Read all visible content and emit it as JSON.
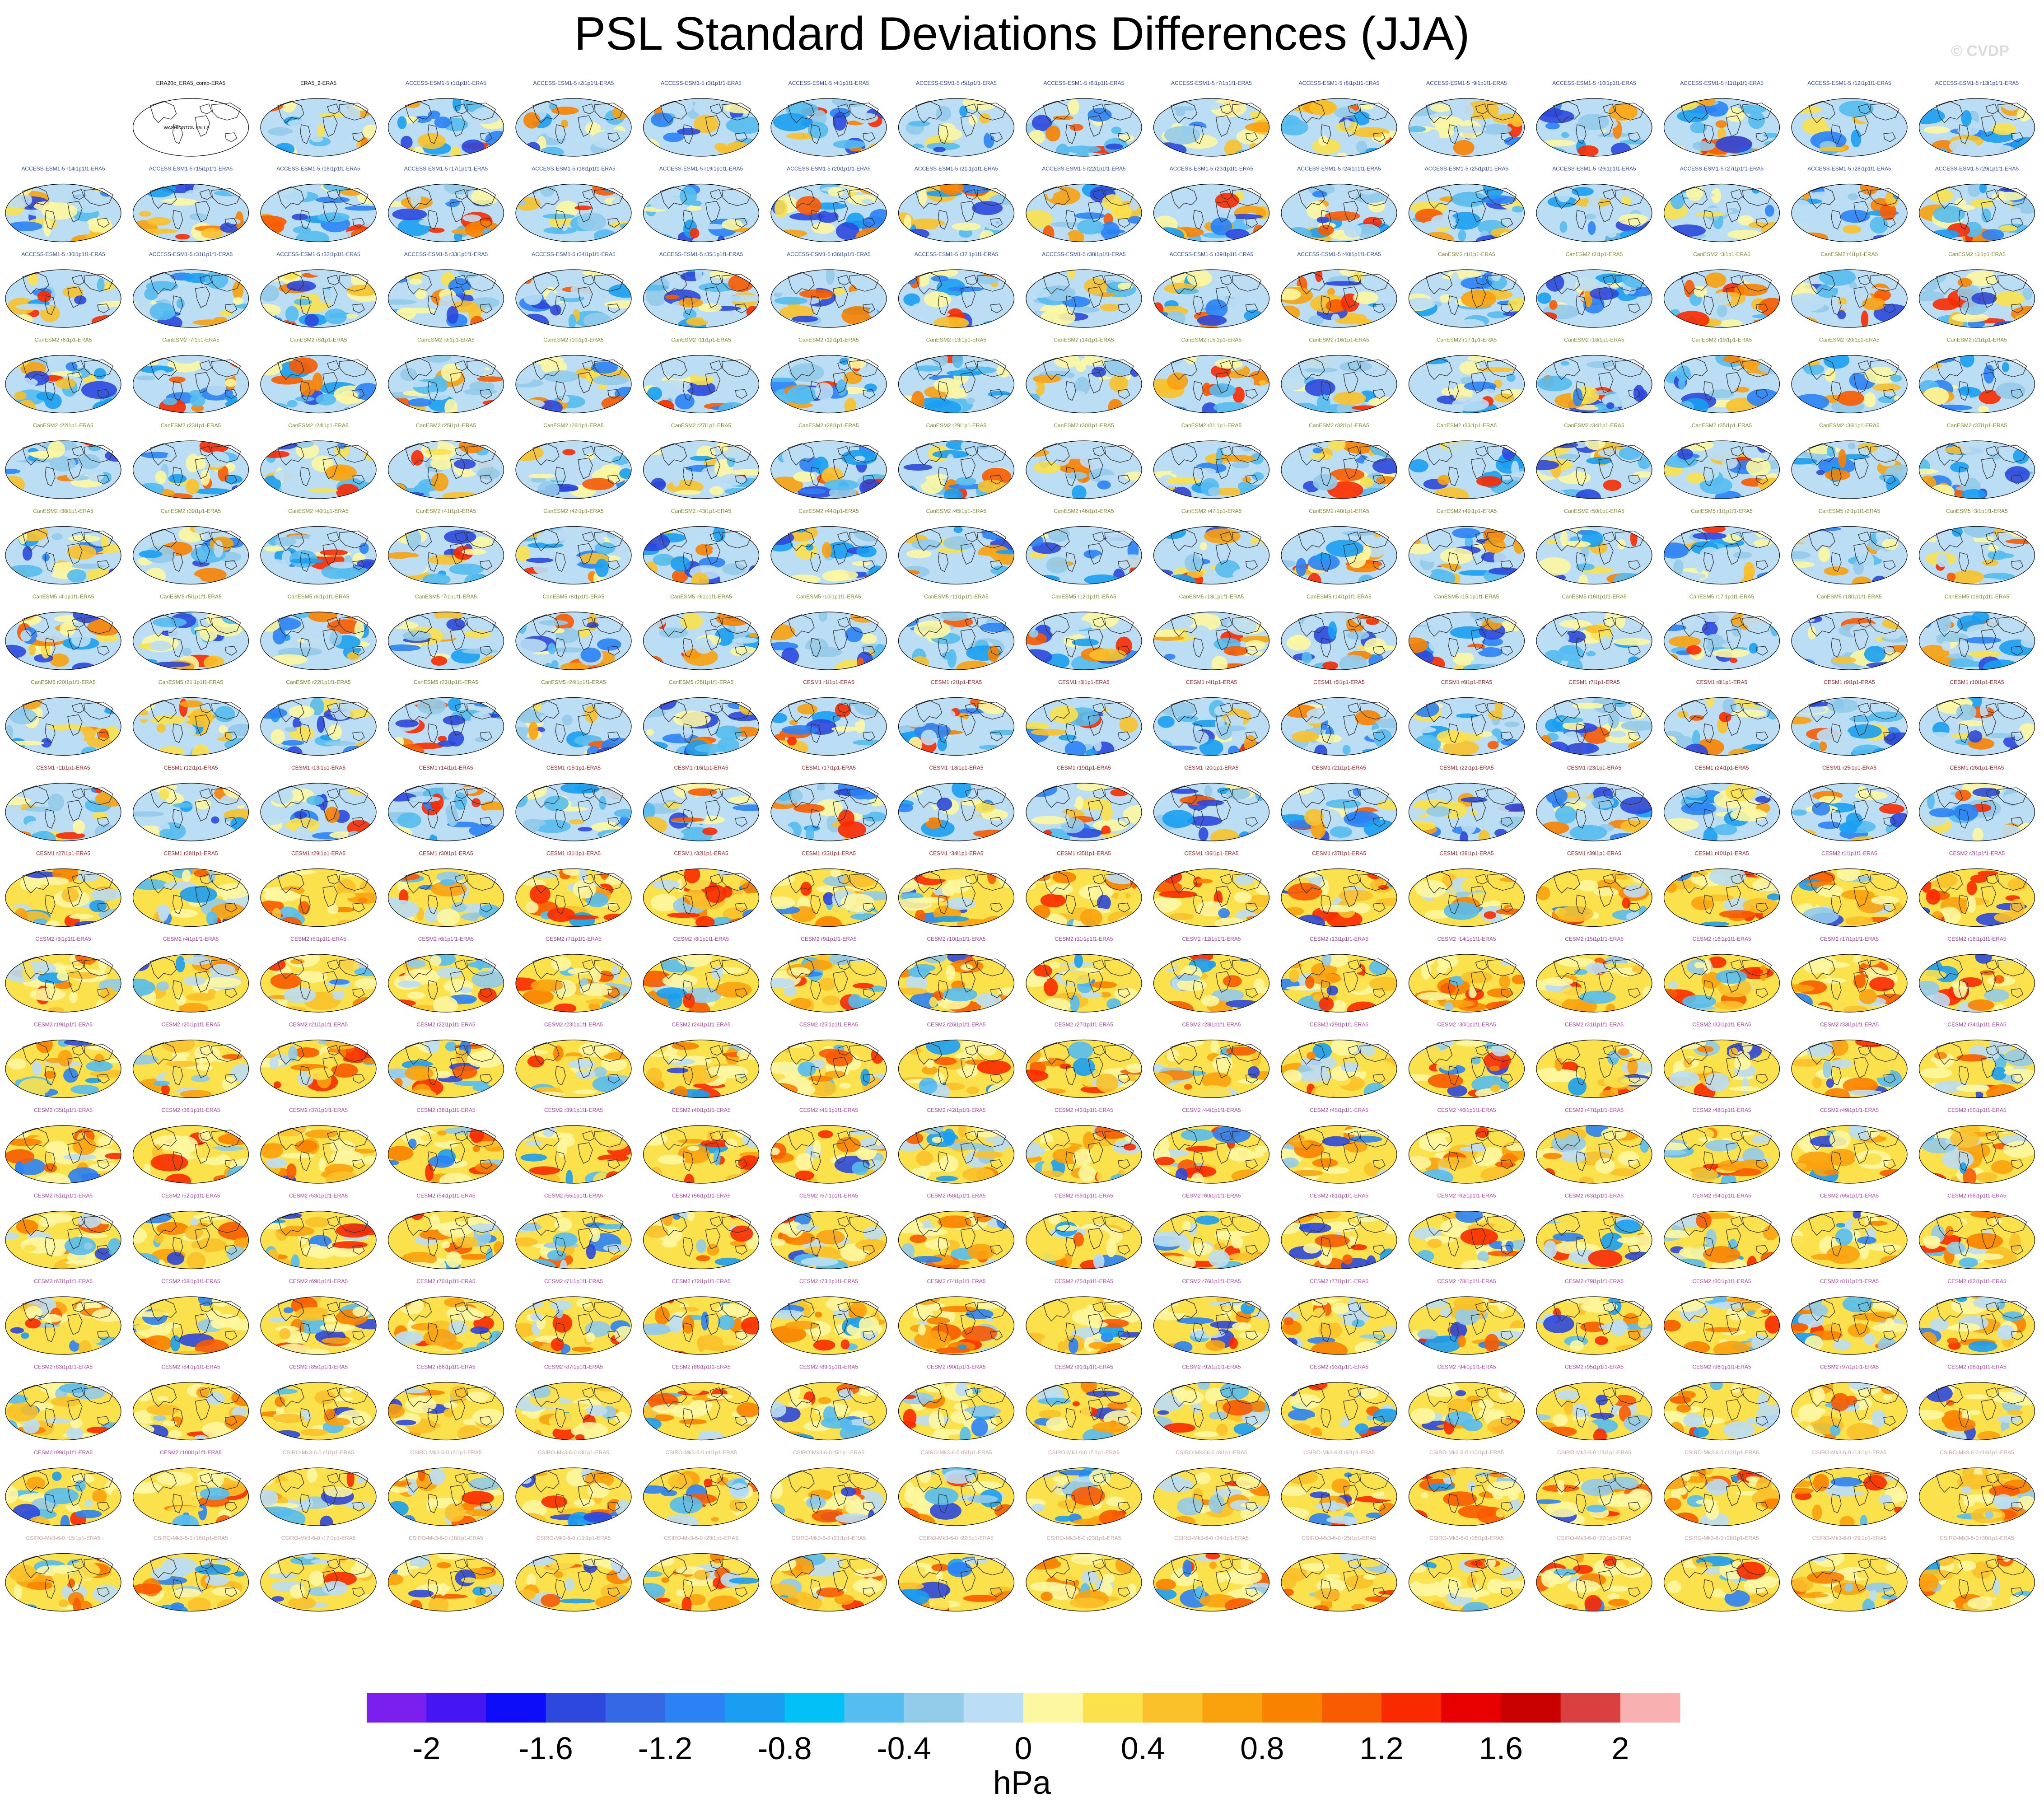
{
  "title": "PSL Standard Deviations Differences (JJA)",
  "watermark": "© CVDP",
  "grid": {
    "rows": 18,
    "cols": 16
  },
  "reference_panel": {
    "title": "ERA20c_ERA5_comb-ERA5",
    "label": "WASHINGTON FALLS"
  },
  "panel_labels": [
    "ERA5_2-ERA5",
    "ACCESS-ESM1-5 r1i1p1f1-ERA5",
    "ACCESS-ESM1-5 r2i1p1f1-ERA5",
    "ACCESS-ESM1-5 r3i1p1f1-ERA5",
    "ACCESS-ESM1-5 r4i1p1f1-ERA5",
    "ACCESS-ESM1-5 r5i1p1f1-ERA5",
    "ACCESS-ESM1-5 r6i1p1f1-ERA5",
    "ACCESS-ESM1-5 r7i1p1f1-ERA5",
    "ACCESS-ESM1-5 r8i1p1f1-ERA5",
    "ACCESS-ESM1-5 r9i1p1f1-ERA5",
    "ACCESS-ESM1-5 r10i1p1f1-ERA5",
    "ACCESS-ESM1-5 r11i1p1f1-ERA5",
    "ACCESS-ESM1-5 r12i1p1f1-ERA5",
    "ACCESS-ESM1-5 r13i1p1f1-ERA5",
    "ACCESS-ESM1-5 r14i1p1f1-ERA5",
    "ACCESS-ESM1-5 r15i1p1f1-ERA5",
    "ACCESS-ESM1-5 r16i1p1f1-ERA5",
    "ACCESS-ESM1-5 r17i1p1f1-ERA5",
    "ACCESS-ESM1-5 r18i1p1f1-ERA5",
    "ACCESS-ESM1-5 r19i1p1f1-ERA5",
    "ACCESS-ESM1-5 r20i1p1f1-ERA5",
    "ACCESS-ESM1-5 r21i1p1f1-ERA5",
    "ACCESS-ESM1-5 r22i1p1f1-ERA5",
    "ACCESS-ESM1-5 r23i1p1f1-ERA5",
    "ACCESS-ESM1-5 r24i1p1f1-ERA5",
    "ACCESS-ESM1-5 r25i1p1f1-ERA5",
    "ACCESS-ESM1-5 r26i1p1f1-ERA5",
    "ACCESS-ESM1-5 r27i1p1f1-ERA5",
    "ACCESS-ESM1-5 r28i1p1f1-ERA5",
    "ACCESS-ESM1-5 r29i1p1f1-ERA5",
    "ACCESS-ESM1-5 r30i1p1f1-ERA5",
    "ACCESS-ESM1-5 r31i1p1f1-ERA5",
    "ACCESS-ESM1-5 r32i1p1f1-ERA5",
    "ACCESS-ESM1-5 r33i1p1f1-ERA5",
    "ACCESS-ESM1-5 r34i1p1f1-ERA5",
    "ACCESS-ESM1-5 r35i1p1f1-ERA5",
    "ACCESS-ESM1-5 r36i1p1f1-ERA5",
    "ACCESS-ESM1-5 r37i1p1f1-ERA5",
    "ACCESS-ESM1-5 r38i1p1f1-ERA5",
    "ACCESS-ESM1-5 r39i1p1f1-ERA5",
    "ACCESS-ESM1-5 r40i1p1f1-ERA5",
    "CanESM2 r1i1p1-ERA5",
    "CanESM2 r2i1p1-ERA5",
    "CanESM2 r3i1p1-ERA5",
    "CanESM2 r4i1p1-ERA5",
    "CanESM2 r5i1p1-ERA5",
    "CanESM2 r6i1p1-ERA5",
    "CanESM2 r7i1p1-ERA5",
    "CanESM2 r8i1p1-ERA5",
    "CanESM2 r9i1p1-ERA5",
    "CanESM2 r10i1p1-ERA5",
    "CanESM2 r11i1p1-ERA5",
    "CanESM2 r12i1p1-ERA5",
    "CanESM2 r13i1p1-ERA5",
    "CanESM2 r14i1p1-ERA5",
    "CanESM2 r15i1p1-ERA5",
    "CanESM2 r16i1p1-ERA5",
    "CanESM2 r17i1p1-ERA5",
    "CanESM2 r18i1p1-ERA5",
    "CanESM2 r19i1p1-ERA5",
    "CanESM2 r20i1p1-ERA5",
    "CanESM2 r21i1p1-ERA5",
    "CanESM2 r22i1p1-ERA5",
    "CanESM2 r23i1p1-ERA5",
    "CanESM2 r24i1p1-ERA5",
    "CanESM2 r25i1p1-ERA5",
    "CanESM2 r26i1p1-ERA5",
    "CanESM2 r27i1p1-ERA5",
    "CanESM2 r28i1p1-ERA5",
    "CanESM2 r29i1p1-ERA5",
    "CanESM2 r30i1p1-ERA5",
    "CanESM2 r31i1p1-ERA5",
    "CanESM2 r32i1p1-ERA5",
    "CanESM2 r33i1p1-ERA5",
    "CanESM2 r34i1p1-ERA5",
    "CanESM2 r35i1p1-ERA5",
    "CanESM2 r36i1p1-ERA5",
    "CanESM2 r37i1p1-ERA5",
    "CanESM2 r38i1p1-ERA5",
    "CanESM2 r39i1p1-ERA5",
    "CanESM2 r40i1p1-ERA5",
    "CanESM2 r41i1p1-ERA5",
    "CanESM2 r42i1p1-ERA5",
    "CanESM2 r43i1p1-ERA5",
    "CanESM2 r44i1p1-ERA5",
    "CanESM2 r45i1p1-ERA5",
    "CanESM2 r46i1p1-ERA5",
    "CanESM2 r47i1p1-ERA5",
    "CanESM2 r48i1p1-ERA5",
    "CanESM2 r49i1p1-ERA5",
    "CanESM2 r50i1p1-ERA5",
    "CanESM5 r1i1p1f1-ERA5",
    "CanESM5 r2i1p1f1-ERA5",
    "CanESM5 r3i1p1f1-ERA5",
    "CanESM5 r4i1p1f1-ERA5",
    "CanESM5 r5i1p1f1-ERA5",
    "CanESM5 r6i1p1f1-ERA5",
    "CanESM5 r7i1p1f1-ERA5",
    "CanESM5 r8i1p1f1-ERA5",
    "CanESM5 r9i1p1f1-ERA5",
    "CanESM5 r10i1p1f1-ERA5",
    "CanESM5 r11i1p1f1-ERA5",
    "CanESM5 r12i1p1f1-ERA5",
    "CanESM5 r13i1p1f1-ERA5",
    "CanESM5 r14i1p1f1-ERA5",
    "CanESM5 r15i1p1f1-ERA5",
    "CanESM5 r16i1p1f1-ERA5",
    "CanESM5 r17i1p1f1-ERA5",
    "CanESM5 r18i1p1f1-ERA5",
    "CanESM5 r19i1p1f1-ERA5",
    "CanESM5 r20i1p1f1-ERA5",
    "CanESM5 r21i1p1f1-ERA5",
    "CanESM5 r22i1p1f1-ERA5",
    "CanESM5 r23i1p1f1-ERA5",
    "CanESM5 r24i1p1f1-ERA5",
    "CanESM5 r25i1p1f1-ERA5",
    "CESM1 r1i1p1-ERA5",
    "CESM1 r2i1p1-ERA5",
    "CESM1 r3i1p1-ERA5",
    "CESM1 r4i1p1-ERA5",
    "CESM1 r5i1p1-ERA5",
    "CESM1 r6i1p1-ERA5",
    "CESM1 r7i1p1-ERA5",
    "CESM1 r8i1p1-ERA5",
    "CESM1 r9i1p1-ERA5",
    "CESM1 r10i1p1-ERA5",
    "CESM1 r11i1p1-ERA5",
    "CESM1 r12i1p1-ERA5",
    "CESM1 r13i1p1-ERA5",
    "CESM1 r14i1p1-ERA5",
    "CESM1 r15i1p1-ERA5",
    "CESM1 r16i1p1-ERA5",
    "CESM1 r17i1p1-ERA5",
    "CESM1 r18i1p1-ERA5",
    "CESM1 r19i1p1-ERA5",
    "CESM1 r20i1p1-ERA5",
    "CESM1 r21i1p1-ERA5",
    "CESM1 r22i1p1-ERA5",
    "CESM1 r23i1p1-ERA5",
    "CESM1 r24i1p1-ERA5",
    "CESM1 r25i1p1-ERA5",
    "CESM1 r26i1p1-ERA5",
    "CESM1 r27i1p1-ERA5",
    "CESM1 r28i1p1-ERA5",
    "CESM1 r29i1p1-ERA5",
    "CESM1 r30i1p1-ERA5",
    "CESM1 r31i1p1-ERA5",
    "CESM1 r32i1p1-ERA5",
    "CESM1 r33i1p1-ERA5",
    "CESM1 r34i1p1-ERA5",
    "CESM1 r35i1p1-ERA5",
    "CESM1 r36i1p1-ERA5",
    "CESM1 r37i1p1-ERA5",
    "CESM1 r38i1p1-ERA5",
    "CESM1 r39i1p1-ERA5",
    "CESM1 r40i1p1-ERA5",
    "CESM2 r1i1p1f1-ERA5",
    "CESM2 r2i1p1f1-ERA5",
    "CESM2 r3i1p1f1-ERA5",
    "CESM2 r4i1p1f1-ERA5",
    "CESM2 r5i1p1f1-ERA5",
    "CESM2 r6i1p1f1-ERA5",
    "CESM2 r7i1p1f1-ERA5",
    "CESM2 r8i1p1f1-ERA5",
    "CESM2 r9i1p1f1-ERA5",
    "CESM2 r10i1p1f1-ERA5",
    "CESM2 r11i1p1f1-ERA5",
    "CESM2 r12i1p1f1-ERA5",
    "CESM2 r13i1p1f1-ERA5",
    "CESM2 r14i1p1f1-ERA5",
    "CESM2 r15i1p1f1-ERA5",
    "CESM2 r16i1p1f1-ERA5",
    "CESM2 r17i1p1f1-ERA5",
    "CESM2 r18i1p1f1-ERA5",
    "CESM2 r19i1p1f1-ERA5",
    "CESM2 r20i1p1f1-ERA5",
    "CESM2 r21i1p1f1-ERA5",
    "CESM2 r22i1p1f1-ERA5",
    "CESM2 r23i1p1f1-ERA5",
    "CESM2 r24i1p1f1-ERA5",
    "CESM2 r25i1p1f1-ERA5",
    "CESM2 r26i1p1f1-ERA5",
    "CESM2 r27i1p1f1-ERA5",
    "CESM2 r28i1p1f1-ERA5",
    "CESM2 r29i1p1f1-ERA5",
    "CESM2 r30i1p1f1-ERA5",
    "CESM2 r31i1p1f1-ERA5",
    "CESM2 r32i1p1f1-ERA5",
    "CESM2 r33i1p1f1-ERA5",
    "CESM2 r34i1p1f1-ERA5",
    "CESM2 r35i1p1f1-ERA5",
    "CESM2 r36i1p1f1-ERA5",
    "CESM2 r37i1p1f1-ERA5",
    "CESM2 r38i1p1f1-ERA5",
    "CESM2 r39i1p1f1-ERA5",
    "CESM2 r40i1p1f1-ERA5",
    "CESM2 r41i1p1f1-ERA5",
    "CESM2 r42i1p1f1-ERA5",
    "CESM2 r43i1p1f1-ERA5",
    "CESM2 r44i1p1f1-ERA5",
    "CESM2 r45i1p1f1-ERA5",
    "CESM2 r46i1p1f1-ERA5",
    "CESM2 r47i1p1f1-ERA5",
    "CESM2 r48i1p1f1-ERA5",
    "CESM2 r49i1p1f1-ERA5",
    "CESM2 r50i1p1f1-ERA5",
    "CESM2 r51i1p1f1-ERA5",
    "CESM2 r52i1p1f1-ERA5",
    "CESM2 r53i1p1f1-ERA5",
    "CESM2 r54i1p1f1-ERA5",
    "CESM2 r55i1p1f1-ERA5",
    "CESM2 r56i1p1f1-ERA5",
    "CESM2 r57i1p1f1-ERA5",
    "CESM2 r58i1p1f1-ERA5",
    "CESM2 r59i1p1f1-ERA5",
    "CESM2 r60i1p1f1-ERA5",
    "CESM2 r61i1p1f1-ERA5",
    "CESM2 r62i1p1f1-ERA5",
    "CESM2 r63i1p1f1-ERA5",
    "CESM2 r64i1p1f1-ERA5",
    "CESM2 r65i1p1f1-ERA5",
    "CESM2 r66i1p1f1-ERA5",
    "CESM2 r67i1p1f1-ERA5",
    "CESM2 r68i1p1f1-ERA5",
    "CESM2 r69i1p1f1-ERA5",
    "CESM2 r70i1p1f1-ERA5",
    "CESM2 r71i1p1f1-ERA5",
    "CESM2 r72i1p1f1-ERA5",
    "CESM2 r73i1p1f1-ERA5",
    "CESM2 r74i1p1f1-ERA5",
    "CESM2 r75i1p1f1-ERA5",
    "CESM2 r76i1p1f1-ERA5",
    "CESM2 r77i1p1f1-ERA5",
    "CESM2 r78i1p1f1-ERA5",
    "CESM2 r79i1p1f1-ERA5",
    "CESM2 r80i1p1f1-ERA5",
    "CESM2 r81i1p1f1-ERA5",
    "CESM2 r82i1p1f1-ERA5",
    "CESM2 r83i1p1f1-ERA5",
    "CESM2 r84i1p1f1-ERA5",
    "CESM2 r85i1p1f1-ERA5",
    "CESM2 r86i1p1f1-ERA5",
    "CESM2 r87i1p1f1-ERA5",
    "CESM2 r88i1p1f1-ERA5",
    "CESM2 r89i1p1f1-ERA5",
    "CESM2 r90i1p1f1-ERA5",
    "CESM2 r91i1p1f1-ERA5",
    "CESM2 r92i1p1f1-ERA5",
    "CESM2 r93i1p1f1-ERA5",
    "CESM2 r94i1p1f1-ERA5",
    "CESM2 r95i1p1f1-ERA5",
    "CESM2 r96i1p1f1-ERA5",
    "CESM2 r97i1p1f1-ERA5",
    "CESM2 r98i1p1f1-ERA5",
    "CESM2 r99i1p1f1-ERA5",
    "CESM2 r100i1p1f1-ERA5",
    "CSIRO-Mk3-6-0 r1i1p1-ERA5",
    "CSIRO-Mk3-6-0 r2i1p1-ERA5",
    "CSIRO-Mk3-6-0 r3i1p1-ERA5",
    "CSIRO-Mk3-6-0 r4i1p1-ERA5",
    "CSIRO-Mk3-6-0 r5i1p1-ERA5",
    "CSIRO-Mk3-6-0 r6i1p1-ERA5",
    "CSIRO-Mk3-6-0 r7i1p1-ERA5",
    "CSIRO-Mk3-6-0 r8i1p1-ERA5",
    "CSIRO-Mk3-6-0 r9i1p1-ERA5",
    "CSIRO-Mk3-6-0 r10i1p1-ERA5",
    "CSIRO-Mk3-6-0 r11i1p1-ERA5",
    "CSIRO-Mk3-6-0 r12i1p1-ERA5",
    "CSIRO-Mk3-6-0 r13i1p1-ERA5",
    "CSIRO-Mk3-6-0 r14i1p1-ERA5",
    "CSIRO-Mk3-6-0 r15i1p1-ERA5",
    "CSIRO-Mk3-6-0 r16i1p1-ERA5",
    "CSIRO-Mk3-6-0 r17i1p1-ERA5",
    "CSIRO-Mk3-6-0 r18i1p1-ERA5",
    "CSIRO-Mk3-6-0 r19i1p1-ERA5",
    "CSIRO-Mk3-6-0 r20i1p1-ERA5",
    "CSIRO-Mk3-6-0 r21i1p1-ERA5",
    "CSIRO-Mk3-6-0 r22i1p1-ERA5",
    "CSIRO-Mk3-6-0 r23i1p1-ERA5",
    "CSIRO-Mk3-6-0 r24i1p1-ERA5",
    "CSIRO-Mk3-6-0 r25i1p1-ERA5",
    "CSIRO-Mk3-6-0 r26i1p1-ERA5",
    "CSIRO-Mk3-6-0 r27i1p1-ERA5",
    "CSIRO-Mk3-6-0 r28i1p1-ERA5",
    "CSIRO-Mk3-6-0 r29i1p1-ERA5",
    "CSIRO-Mk3-6-0 r30i1p1-ERA5"
  ],
  "chart_data": {
    "type": "heatmap",
    "title": "PSL Standard Deviations Differences (JJA)",
    "colorbar": {
      "unit_label": "hPa",
      "levels": [
        -2.2,
        -2,
        -1.8,
        -1.6,
        -1.4,
        -1.2,
        -1,
        -0.8,
        -0.6,
        -0.4,
        -0.2,
        0,
        0.2,
        0.4,
        0.6,
        0.8,
        1,
        1.2,
        1.4,
        1.6,
        1.8,
        2,
        2.2
      ],
      "colors": [
        "#7b1fee",
        "#4616f2",
        "#0d0dfa",
        "#2c48dd",
        "#3468e4",
        "#2b82f5",
        "#199ff2",
        "#03c1f6",
        "#55bdf0",
        "#93cbea",
        "#bbdef4",
        "#fdf7a1",
        "#fbe14c",
        "#fac12a",
        "#f9a20e",
        "#f98200",
        "#f85b00",
        "#f92a00",
        "#e80000",
        "#c80000",
        "#da4040",
        "#f9b0b0"
      ],
      "tick_values": [
        -2,
        -1.6,
        -1.2,
        -0.8,
        -0.4,
        0,
        0.4,
        0.8,
        1.2,
        1.6,
        2
      ],
      "tick_labels": [
        "-2",
        "-1.6",
        "-1.2",
        "-0.8",
        "-0.4",
        "0",
        "0.4",
        "0.8",
        "1.2",
        "1.6",
        "2"
      ]
    },
    "map_projection": "robinson",
    "panel_count_shown": 287
  }
}
